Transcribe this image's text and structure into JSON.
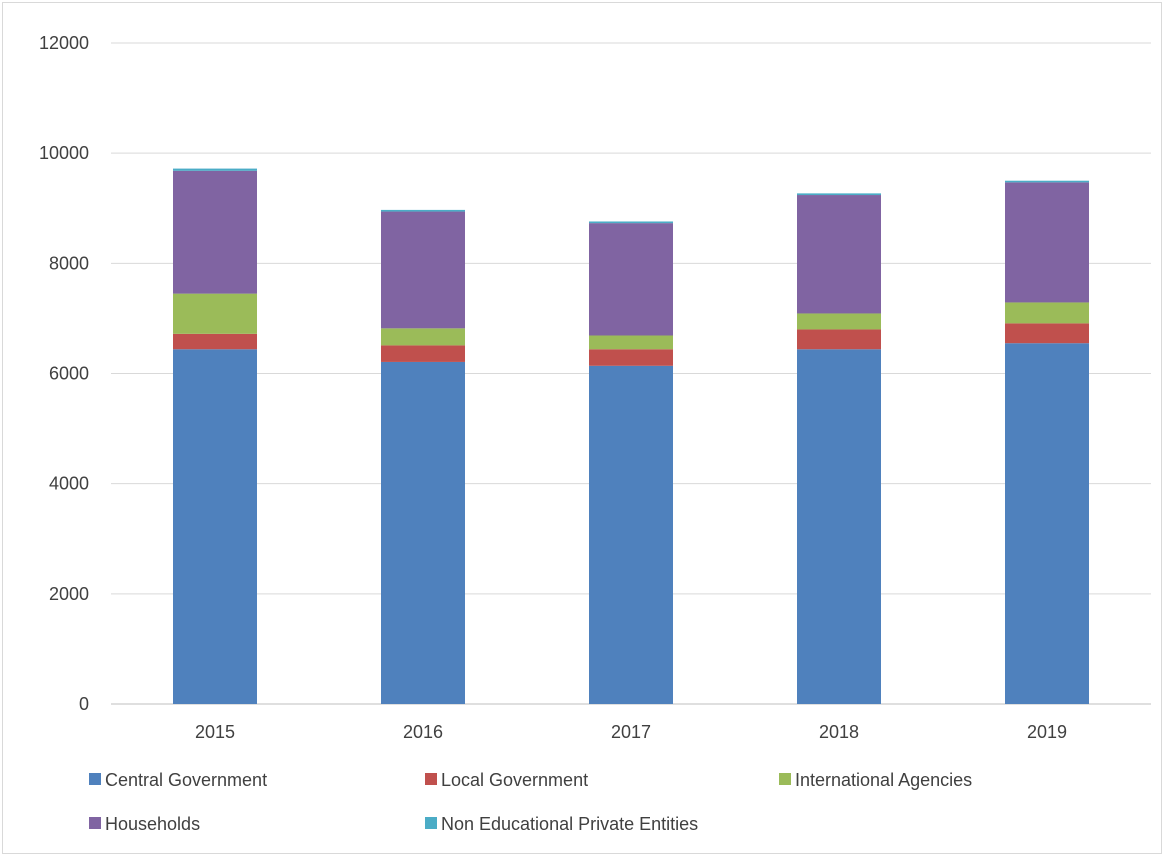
{
  "chart_data": {
    "type": "bar",
    "stacked": true,
    "title": "",
    "xlabel": "",
    "ylabel": "",
    "categories": [
      "2015",
      "2016",
      "2017",
      "2018",
      "2019"
    ],
    "ylim": [
      0,
      12000
    ],
    "yticks": [
      0,
      2000,
      4000,
      6000,
      8000,
      10000,
      12000
    ],
    "grid": true,
    "legend_position": "bottom",
    "series": [
      {
        "name": "Central Government",
        "color": "#4f81bd",
        "values": [
          6440,
          6210,
          6140,
          6440,
          6550
        ]
      },
      {
        "name": "Local Government",
        "color": "#c0504d",
        "values": [
          280,
          300,
          300,
          360,
          360
        ]
      },
      {
        "name": "International Agencies",
        "color": "#9bbb59",
        "values": [
          730,
          310,
          250,
          290,
          380
        ]
      },
      {
        "name": "Households",
        "color": "#8064a2",
        "values": [
          2230,
          2120,
          2040,
          2150,
          2180
        ]
      },
      {
        "name": "Non Educational Private Entities",
        "color": "#4bacc6",
        "values": [
          40,
          30,
          30,
          30,
          30
        ]
      }
    ]
  }
}
